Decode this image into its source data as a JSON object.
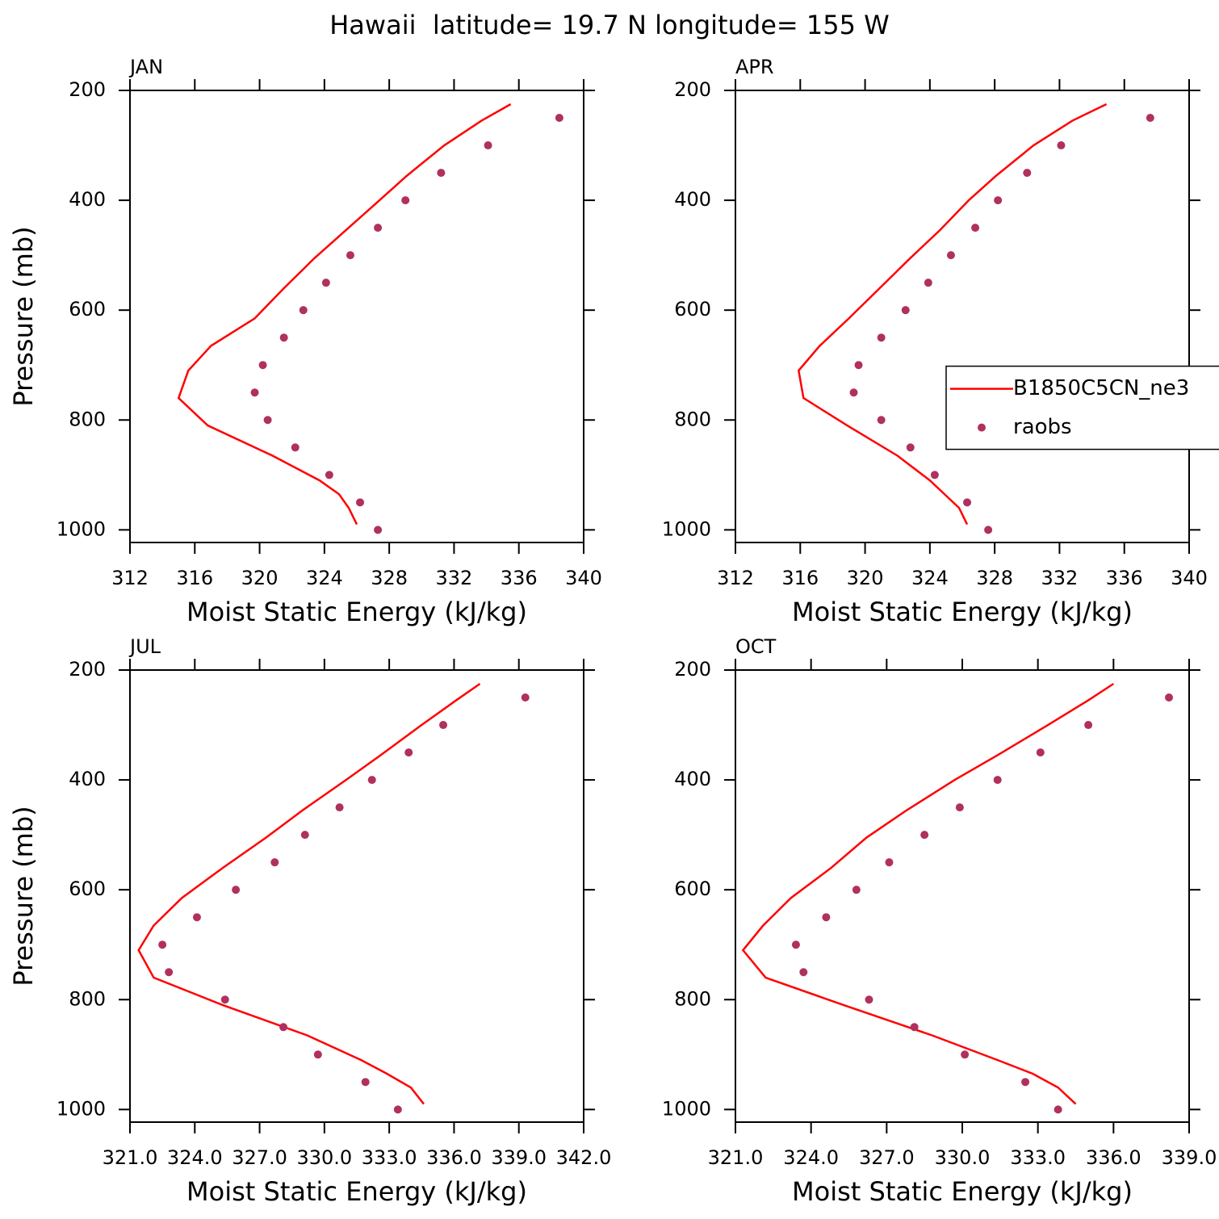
{
  "title": "Hawaii  latitude= 19.7 N longitude= 155 W",
  "chart_data": [
    {
      "type": "line",
      "title": "JAN",
      "xlabel": "Moist Static Energy (kJ/kg)",
      "ylabel": "Pressure (mb)",
      "xlim": [
        312,
        340
      ],
      "xticks": [
        312,
        316,
        320,
        324,
        328,
        332,
        336,
        340
      ],
      "ylim": [
        1023,
        200
      ],
      "yticks": [
        200,
        400,
        600,
        800,
        1000
      ],
      "series": [
        {
          "type": "line",
          "color": "#ff0000",
          "x": [
            335.5,
            333.7,
            331.4,
            329.1,
            327.4,
            325.3,
            323.4,
            321.5,
            319.7,
            317.0,
            315.6,
            315.0,
            316.8,
            320.8,
            323.7,
            324.9,
            325.5,
            326.0
          ],
          "y": [
            225,
            255,
            300,
            355,
            400,
            455,
            505,
            560,
            615,
            665,
            710,
            760,
            810,
            865,
            910,
            935,
            960,
            990
          ]
        },
        {
          "type": "scatter",
          "color": "#b03060",
          "x": [
            338.5,
            334.1,
            331.2,
            329.0,
            327.3,
            325.6,
            324.1,
            322.7,
            321.5,
            320.2,
            319.7,
            320.5,
            322.2,
            324.3,
            326.2,
            327.3
          ],
          "y": [
            250,
            300,
            350,
            400,
            450,
            500,
            550,
            600,
            650,
            700,
            750,
            800,
            850,
            900,
            950,
            1000
          ]
        }
      ]
    },
    {
      "type": "line",
      "title": "APR",
      "xlabel": "Moist Static Energy (kJ/kg)",
      "xlim": [
        312,
        340
      ],
      "xticks": [
        312,
        316,
        320,
        324,
        328,
        332,
        336,
        340
      ],
      "ylim": [
        1023,
        200
      ],
      "yticks": [
        200,
        400,
        600,
        800,
        1000
      ],
      "legend": "right",
      "series": [
        {
          "type": "line",
          "name": "B1850C5CN_ne3",
          "color": "#ff0000",
          "x": [
            334.9,
            332.8,
            330.4,
            328.1,
            326.4,
            324.6,
            322.8,
            320.9,
            319.0,
            317.2,
            315.9,
            316.2,
            318.9,
            322.0,
            324.0,
            324.9,
            325.8,
            326.3
          ],
          "y": [
            225,
            255,
            300,
            355,
            400,
            455,
            505,
            560,
            615,
            665,
            710,
            760,
            810,
            865,
            910,
            935,
            960,
            990
          ]
        },
        {
          "type": "scatter",
          "name": "raobs",
          "color": "#b03060",
          "x": [
            337.6,
            332.1,
            330.0,
            328.2,
            326.8,
            325.3,
            323.9,
            322.5,
            321.0,
            319.6,
            319.3,
            321.0,
            322.8,
            324.3,
            326.3,
            327.6
          ],
          "y": [
            250,
            300,
            350,
            400,
            450,
            500,
            550,
            600,
            650,
            700,
            750,
            800,
            850,
            900,
            950,
            1000
          ]
        }
      ]
    },
    {
      "type": "line",
      "title": "JUL",
      "xlabel": "Moist Static Energy (kJ/kg)",
      "ylabel": "Pressure (mb)",
      "xlim": [
        321,
        342
      ],
      "xticks": [
        {
          "value": 321,
          "label": "321.0"
        },
        {
          "value": 324,
          "label": "324.0"
        },
        {
          "value": 327,
          "label": "327.0"
        },
        {
          "value": 330,
          "label": "330.0"
        },
        {
          "value": 333,
          "label": "333.0"
        },
        {
          "value": 336,
          "label": "336.0"
        },
        {
          "value": 339,
          "label": "339.0"
        },
        {
          "value": 342,
          "label": "342.0"
        }
      ],
      "ylim": [
        1023,
        200
      ],
      "yticks": [
        200,
        400,
        600,
        800,
        1000
      ],
      "series": [
        {
          "type": "line",
          "color": "#ff0000",
          "x": [
            337.2,
            336.1,
            334.5,
            332.6,
            331.0,
            329.0,
            327.3,
            325.3,
            323.4,
            322.1,
            321.4,
            322.1,
            325.3,
            329.2,
            331.7,
            332.9,
            334.0,
            334.6
          ],
          "y": [
            225,
            255,
            300,
            355,
            400,
            455,
            505,
            560,
            615,
            665,
            710,
            760,
            810,
            865,
            910,
            935,
            960,
            990
          ]
        },
        {
          "type": "scatter",
          "color": "#b03060",
          "x": [
            339.3,
            335.5,
            333.9,
            332.2,
            330.7,
            329.1,
            327.7,
            325.9,
            324.1,
            322.5,
            322.8,
            325.4,
            328.1,
            329.7,
            331.9,
            333.4
          ],
          "y": [
            250,
            300,
            350,
            400,
            450,
            500,
            550,
            600,
            650,
            700,
            750,
            800,
            850,
            900,
            950,
            1000
          ]
        }
      ]
    },
    {
      "type": "line",
      "title": "OCT",
      "xlabel": "Moist Static Energy (kJ/kg)",
      "xlim": [
        321,
        339
      ],
      "xticks": [
        {
          "value": 321,
          "label": "321.0"
        },
        {
          "value": 324,
          "label": "324.0"
        },
        {
          "value": 327,
          "label": "327.0"
        },
        {
          "value": 330,
          "label": "330.0"
        },
        {
          "value": 333,
          "label": "333.0"
        },
        {
          "value": 336,
          "label": "336.0"
        },
        {
          "value": 339,
          "label": "339.0"
        }
      ],
      "ylim": [
        1023,
        200
      ],
      "yticks": [
        200,
        400,
        600,
        800,
        1000
      ],
      "series": [
        {
          "type": "line",
          "color": "#ff0000",
          "x": [
            336.0,
            335.0,
            333.4,
            331.4,
            329.7,
            327.8,
            326.2,
            324.8,
            323.2,
            322.1,
            321.3,
            322.2,
            325.3,
            328.8,
            331.4,
            332.8,
            333.8,
            334.5
          ],
          "y": [
            225,
            255,
            300,
            355,
            400,
            455,
            505,
            560,
            615,
            665,
            710,
            760,
            810,
            865,
            910,
            935,
            960,
            990
          ]
        },
        {
          "type": "scatter",
          "color": "#b03060",
          "x": [
            338.2,
            335.0,
            333.1,
            331.4,
            329.9,
            328.5,
            327.1,
            325.8,
            324.6,
            323.4,
            323.7,
            326.3,
            328.1,
            330.1,
            332.5,
            333.8
          ],
          "y": [
            250,
            300,
            350,
            400,
            450,
            500,
            550,
            600,
            650,
            700,
            750,
            800,
            850,
            900,
            950,
            1000
          ]
        }
      ]
    }
  ]
}
